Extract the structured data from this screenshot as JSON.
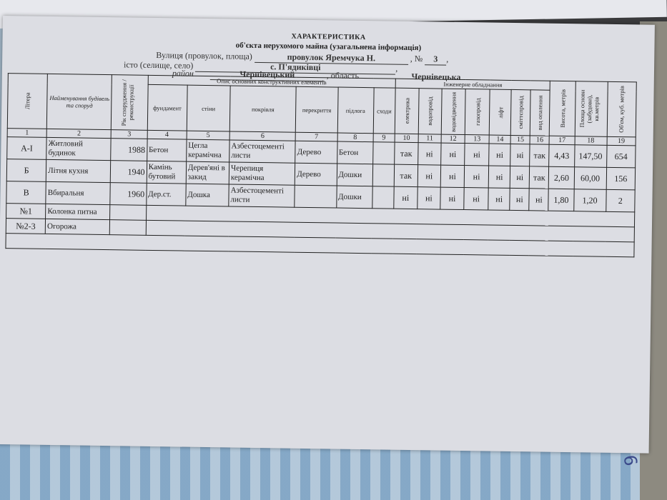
{
  "title": "ХАРАКТЕРИСТИКА",
  "subtitle": "об'єкта нерухомого майна (узагальнена інформація)",
  "address": {
    "street_label": "Вулиця (провулок, площа)",
    "street": "провулок  Яремчука Н.",
    "no_label": ", №",
    "no": "3",
    "comma": ",",
    "city_label": "істо (селище, село)",
    "city": "с.  П'ядиківці",
    "district_label": "район",
    "district": "Чернівецький",
    "region_label": ", область",
    "region": "Чернівецька"
  },
  "headers": {
    "litera": "Літера",
    "name": "Найменування будівель та споруд",
    "year": "Рік спорудження / реконструкції",
    "desc_group": "Опис основних конструктивних елементів",
    "fundament": "фундамент",
    "stiny": "стіни",
    "pokrivlia": "покрівля",
    "perekryttia": "перекриття",
    "pidloga": "підлога",
    "shody": "сходи",
    "eng_group": "Інженерне обладнання",
    "elektryka": "електрика",
    "vodoprovid": "водопровід",
    "vodovidvedennia": "водовідведення",
    "gazoprovid": "газопровід",
    "lift": "ліфт",
    "smittieprovid": "сміттєпровід",
    "opalennia": "вид опалення",
    "vysota": "Висота, метрів",
    "ploshcha": "Площа основи (забудови), кв.метрів",
    "obiem": "Об'єм, куб. метрів",
    "numbers": [
      "1",
      "2",
      "3",
      "4",
      "5",
      "6",
      "7",
      "8",
      "9",
      "10",
      "11",
      "12",
      "13",
      "14",
      "15",
      "16",
      "17",
      "18",
      "19"
    ]
  },
  "rows": [
    [
      "А-І",
      "Житловий будинок",
      "1988",
      "Бетон",
      "Цегла керамічна",
      "Азбестоцементі листи",
      "Дерево",
      "Бетон",
      "",
      "так",
      "ні",
      "ні",
      "ні",
      "ні",
      "ні",
      "так",
      "4,43",
      "147,50",
      "654"
    ],
    [
      "Б",
      "Літня кухня",
      "1940",
      "Камінь бутовий",
      "Дерев'яні в закид",
      "Черепиця керамічна",
      "Дерево",
      "Дошки",
      "",
      "так",
      "ні",
      "ні",
      "ні",
      "ні",
      "ні",
      "так",
      "2,60",
      "60,00",
      "156"
    ],
    [
      "В",
      "Вбиральня",
      "1960",
      "Дер.ст.",
      "Дошка",
      "Азбестоцементі листи",
      "",
      "Дошки",
      "",
      "ні",
      "ні",
      "ні",
      "ні",
      "ні",
      "ні",
      "ні",
      "1,80",
      "1,20",
      "2"
    ]
  ],
  "extra_rows": [
    [
      "№1",
      "Колонка питна"
    ],
    [
      "№2-3",
      "Огорожа"
    ]
  ],
  "page_number": "9"
}
